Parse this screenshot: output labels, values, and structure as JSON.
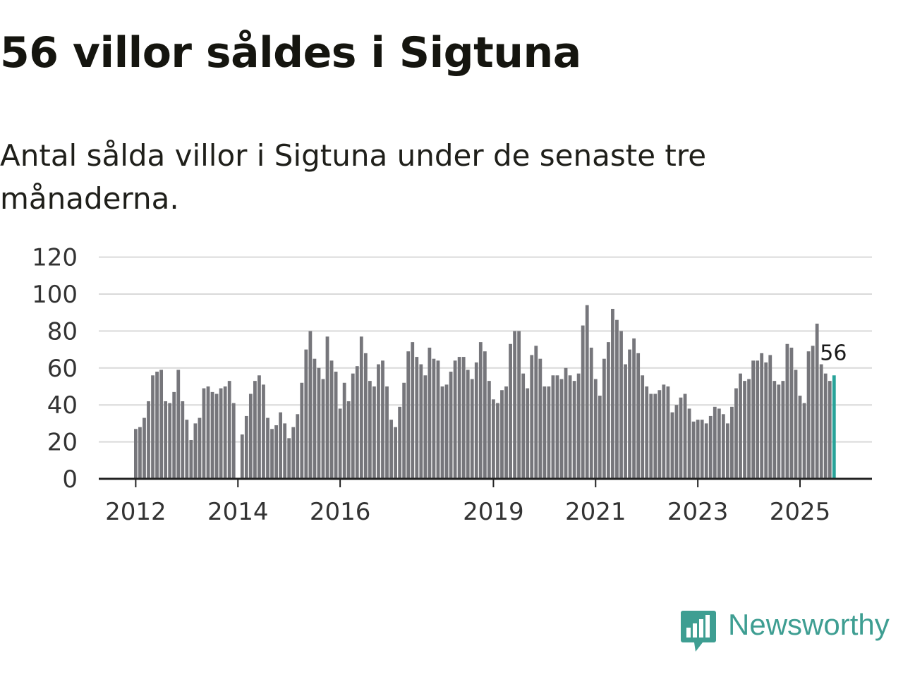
{
  "header": {
    "title": "56 villor såldes i Sigtuna",
    "subtitle": "Antal sålda villor i Sigtuna under de senaste tre månaderna."
  },
  "brand": {
    "name": "Newsworthy",
    "icon": "newsworthy-logo-icon",
    "color": "#3e9e92"
  },
  "colors": {
    "bar": "#76767b",
    "highlight": "#28a399",
    "grid": "#d9d9d9",
    "axis": "#222222"
  },
  "chart_data": {
    "type": "bar",
    "title": "56 villor såldes i Sigtuna",
    "subtitle": "Antal sålda villor i Sigtuna under de senaste tre månaderna.",
    "xlabel": "",
    "ylabel": "",
    "ylim": [
      0,
      120
    ],
    "yticks": [
      0,
      20,
      40,
      60,
      80,
      100,
      120
    ],
    "grid": true,
    "x_start": "2012-01",
    "xtick_labels": [
      {
        "label": "2012",
        "index": 0
      },
      {
        "label": "2014",
        "index": 24
      },
      {
        "label": "2016",
        "index": 48
      },
      {
        "label": "2019",
        "index": 84
      },
      {
        "label": "2021",
        "index": 108
      },
      {
        "label": "2023",
        "index": 132
      },
      {
        "label": "2025",
        "index": 156
      }
    ],
    "values": [
      27,
      28,
      33,
      42,
      56,
      58,
      59,
      42,
      41,
      47,
      59,
      42,
      32,
      21,
      30,
      33,
      49,
      50,
      47,
      46,
      49,
      50,
      53,
      41,
      0,
      24,
      34,
      46,
      53,
      56,
      51,
      33,
      27,
      29,
      36,
      30,
      22,
      28,
      35,
      52,
      70,
      80,
      65,
      60,
      54,
      77,
      64,
      58,
      38,
      52,
      42,
      57,
      61,
      77,
      68,
      53,
      50,
      62,
      64,
      50,
      32,
      28,
      39,
      52,
      69,
      74,
      66,
      62,
      56,
      71,
      65,
      64,
      50,
      51,
      58,
      64,
      66,
      66,
      59,
      54,
      63,
      74,
      69,
      53,
      43,
      41,
      48,
      50,
      73,
      80,
      80,
      57,
      49,
      67,
      72,
      65,
      50,
      50,
      56,
      56,
      54,
      60,
      56,
      53,
      57,
      83,
      94,
      71,
      54,
      45,
      65,
      74,
      92,
      86,
      80,
      62,
      70,
      76,
      68,
      56,
      50,
      46,
      46,
      48,
      51,
      50,
      36,
      40,
      44,
      46,
      38,
      31,
      32,
      32,
      30,
      34,
      39,
      38,
      35,
      30,
      39,
      49,
      57,
      53,
      54,
      64,
      64,
      68,
      63,
      67,
      53,
      51,
      53,
      73,
      71,
      59,
      45,
      41,
      69,
      72,
      84,
      62,
      57,
      53,
      56
    ],
    "highlight_index": 164,
    "highlight_label": "56"
  }
}
